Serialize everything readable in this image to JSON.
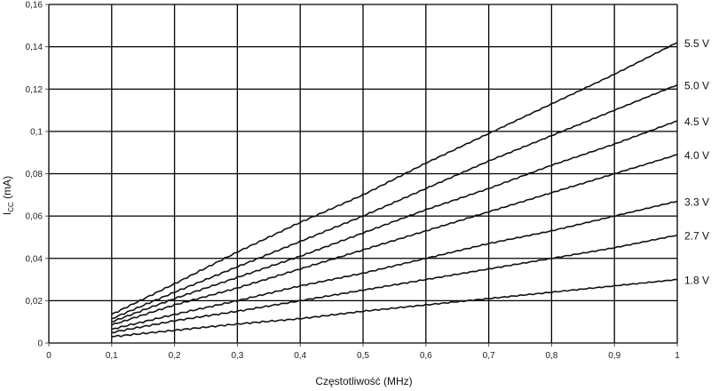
{
  "chart_data": {
    "type": "line",
    "title": "",
    "xlabel": "Częstotliwość (MHz)",
    "ylabel_main": "I",
    "ylabel_sub": "CC",
    "ylabel_rest": " (mA)",
    "xlim": [
      0,
      1
    ],
    "ylim": [
      0,
      0.16
    ],
    "grid": true,
    "legend": "right-end labels",
    "x_ticks": [
      "0",
      "0,1",
      "0,2",
      "0,3",
      "0,4",
      "0,5",
      "0,6",
      "0,7",
      "0,8",
      "0,9",
      "1"
    ],
    "x_tick_values": [
      0,
      0.1,
      0.2,
      0.3,
      0.4,
      0.5,
      0.6,
      0.7,
      0.8,
      0.9,
      1
    ],
    "y_ticks": [
      "0",
      "0,02",
      "0,04",
      "0,06",
      "0,08",
      "0,1",
      "0,12",
      "0,14",
      "0,16"
    ],
    "y_tick_values": [
      0,
      0.02,
      0.04,
      0.06,
      0.08,
      0.1,
      0.12,
      0.14,
      0.16
    ],
    "x": [
      0.1,
      0.2,
      0.3,
      0.4,
      0.5,
      0.6,
      0.7,
      0.8,
      0.9,
      1.0
    ],
    "series": [
      {
        "name": "5.5 V",
        "values": [
          0.0135,
          0.028,
          0.043,
          0.057,
          0.07,
          0.085,
          0.099,
          0.113,
          0.127,
          0.142
        ]
      },
      {
        "name": "5.0 V",
        "values": [
          0.0115,
          0.024,
          0.036,
          0.048,
          0.06,
          0.073,
          0.086,
          0.098,
          0.11,
          0.122
        ]
      },
      {
        "name": "4.5 V",
        "values": [
          0.01,
          0.021,
          0.031,
          0.041,
          0.052,
          0.063,
          0.073,
          0.084,
          0.094,
          0.105
        ]
      },
      {
        "name": "4.0 V",
        "values": [
          0.0085,
          0.018,
          0.026,
          0.035,
          0.044,
          0.053,
          0.062,
          0.071,
          0.08,
          0.089
        ]
      },
      {
        "name": "3.3 V",
        "values": [
          0.0065,
          0.0135,
          0.02,
          0.027,
          0.033,
          0.04,
          0.047,
          0.053,
          0.06,
          0.067
        ]
      },
      {
        "name": "2.7 V",
        "values": [
          0.005,
          0.0105,
          0.015,
          0.02,
          0.025,
          0.03,
          0.035,
          0.04,
          0.045,
          0.051
        ]
      },
      {
        "name": "1.8 V",
        "values": [
          0.003,
          0.006,
          0.009,
          0.0115,
          0.015,
          0.018,
          0.021,
          0.024,
          0.027,
          0.03
        ]
      }
    ],
    "colors": {
      "line": "#111111",
      "grid": "#000000",
      "axis": "#555555"
    }
  }
}
